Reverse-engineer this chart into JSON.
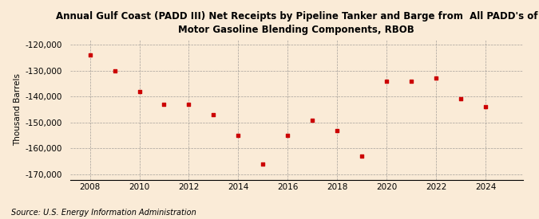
{
  "title": "Annual Gulf Coast (PADD III) Net Receipts by Pipeline Tanker and Barge from  All PADD's of\nMotor Gasoline Blending Components, RBOB",
  "ylabel": "Thousand Barrels",
  "source": "Source: U.S. Energy Information Administration",
  "background_color": "#faebd7",
  "marker_color": "#cc0000",
  "years": [
    2008,
    2009,
    2010,
    2011,
    2012,
    2013,
    2014,
    2015,
    2016,
    2017,
    2018,
    2019,
    2020,
    2021,
    2022,
    2023,
    2024
  ],
  "values": [
    -124000,
    -130000,
    -138000,
    -143000,
    -143000,
    -147000,
    -155000,
    -166000,
    -155000,
    -149000,
    -153000,
    -163000,
    -134000,
    -134000,
    -133000,
    -141000,
    -144000
  ],
  "ylim": [
    -172000,
    -118000
  ],
  "yticks": [
    -120000,
    -130000,
    -140000,
    -150000,
    -160000,
    -170000
  ],
  "xlim": [
    2007.2,
    2025.5
  ],
  "xticks": [
    2008,
    2010,
    2012,
    2014,
    2016,
    2018,
    2020,
    2022,
    2024
  ]
}
